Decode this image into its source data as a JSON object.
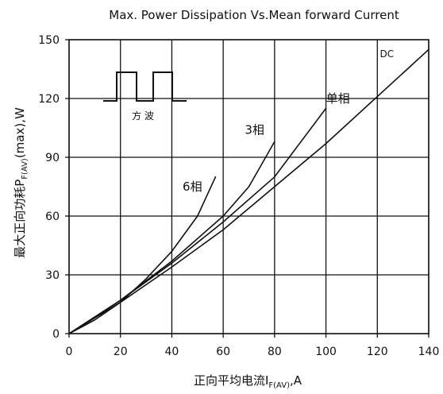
{
  "chart_data": {
    "type": "line",
    "title": "Max. Power Dissipation Vs.Mean forward Current",
    "xlabel": {
      "main": "正向平均电流I",
      "sub": "F(AV)",
      "unit": ",A"
    },
    "ylabel": {
      "main": "最大正向功耗P",
      "sub": "F(AV)",
      "unit": "(max),W"
    },
    "xlim": [
      0,
      140
    ],
    "ylim": [
      0,
      150
    ],
    "xticks": [
      0,
      20,
      40,
      60,
      80,
      100,
      120,
      140
    ],
    "yticks": [
      0,
      30,
      60,
      90,
      120,
      150
    ],
    "grid": true,
    "series": [
      {
        "name": "6相",
        "points": [
          [
            0,
            0
          ],
          [
            10,
            7
          ],
          [
            20,
            16
          ],
          [
            30,
            28
          ],
          [
            40,
            42
          ],
          [
            50,
            60
          ],
          [
            57,
            80
          ]
        ]
      },
      {
        "name": "3相",
        "points": [
          [
            0,
            0
          ],
          [
            20,
            17
          ],
          [
            40,
            37
          ],
          [
            60,
            60
          ],
          [
            70,
            75
          ],
          [
            80,
            98
          ]
        ]
      },
      {
        "name": "单相",
        "points": [
          [
            0,
            0
          ],
          [
            20,
            17
          ],
          [
            40,
            36
          ],
          [
            60,
            57
          ],
          [
            80,
            80
          ],
          [
            100,
            115
          ]
        ]
      },
      {
        "name": "DC",
        "points": [
          [
            0,
            0
          ],
          [
            20,
            16
          ],
          [
            40,
            34
          ],
          [
            60,
            53
          ],
          [
            80,
            75
          ],
          [
            100,
            97
          ],
          [
            120,
            121
          ],
          [
            140,
            145
          ]
        ]
      }
    ],
    "inset": {
      "label": "方 波"
    }
  }
}
